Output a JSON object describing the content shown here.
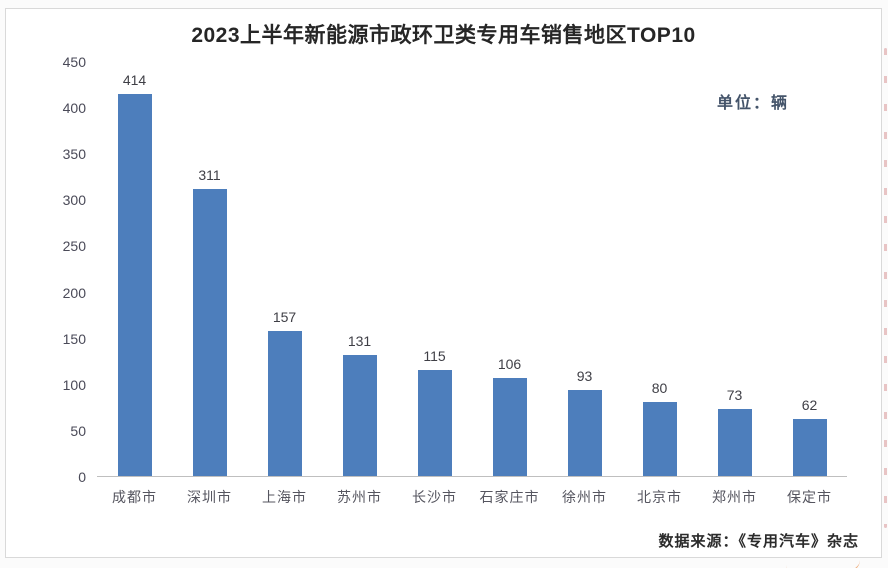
{
  "header": {
    "title": "2023上半年新能源市政环卫类专用车销售地区TOP10",
    "unit_label": "单位：辆"
  },
  "footer": {
    "source": "数据来源：《专用汽车》杂志"
  },
  "chart_data": {
    "type": "bar",
    "title": "2023上半年新能源市政环卫类专用车销售地区TOP10",
    "categories": [
      "成都市",
      "深圳市",
      "上海市",
      "苏州市",
      "长沙市",
      "石家庄市",
      "徐州市",
      "北京市",
      "郑州市",
      "保定市"
    ],
    "values": [
      414,
      311,
      157,
      131,
      115,
      106,
      93,
      80,
      73,
      62
    ],
    "xlabel": "",
    "ylabel": "",
    "unit": "辆",
    "ylim": [
      0,
      450
    ],
    "yticks": [
      0,
      50,
      100,
      150,
      200,
      250,
      300,
      350,
      400,
      450
    ],
    "grid": false,
    "legend_position": "none",
    "data_labels": true,
    "bar_color": "#4d7ebc"
  },
  "colors": {
    "bar": "#4d7ebc",
    "axis_line": "#bfbfbf",
    "tick_text": "#4a4a58",
    "title_text": "#262626",
    "unit_text": "#44546a",
    "annotation_red": "#d89698",
    "annotation_orange": "#e9873e"
  }
}
